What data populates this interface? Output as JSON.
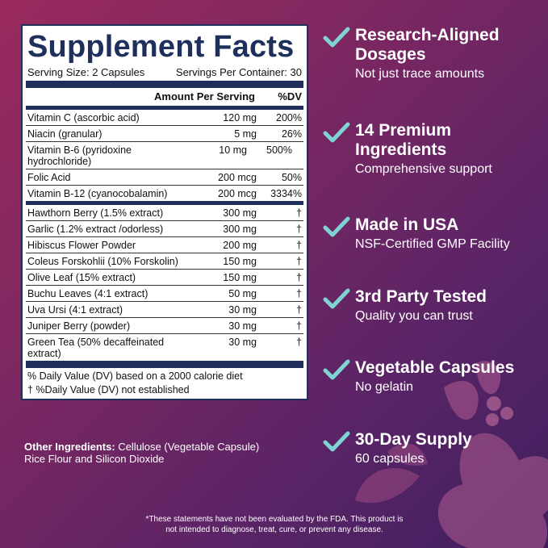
{
  "panel": {
    "title": "Supplement Facts",
    "serving_size": "Serving Size: 2 Capsules",
    "servings_per_container": "Servings Per Container: 30",
    "col_amount": "Amount Per Serving",
    "col_dv": "%DV",
    "rows_group1": [
      {
        "name": "Vitamin C (ascorbic acid)",
        "amount": "120 mg",
        "dv": "200%"
      },
      {
        "name": "Niacin (granular)",
        "amount": "5 mg",
        "dv": "26%"
      },
      {
        "name": "Vitamin B-6 (pyridoxine hydrochloride)",
        "amount": "10 mg",
        "dv": "500%"
      },
      {
        "name": "Folic Acid",
        "amount": "200 mcg",
        "dv": "50%"
      },
      {
        "name": "Vitamin B-12 (cyanocobalamin)",
        "amount": "200 mcg",
        "dv": "3334%"
      }
    ],
    "rows_group2": [
      {
        "name": "Hawthorn Berry (1.5% extract)",
        "amount": "300 mg",
        "dv": "†"
      },
      {
        "name": "Garlic (1.2% extract /odorless)",
        "amount": "300 mg",
        "dv": "†"
      },
      {
        "name": "Hibiscus Flower Powder",
        "amount": "200 mg",
        "dv": "†"
      },
      {
        "name": "Coleus Forskohlii (10% Forskolin)",
        "amount": "150 mg",
        "dv": "†"
      },
      {
        "name": "Olive Leaf (15% extract)",
        "amount": "150 mg",
        "dv": "†"
      },
      {
        "name": "Buchu Leaves (4:1 extract)",
        "amount": "50 mg",
        "dv": "†"
      },
      {
        "name": "Uva Ursi (4:1 extract)",
        "amount": "30 mg",
        "dv": "†"
      },
      {
        "name": "Juniper Berry (powder)",
        "amount": "30 mg",
        "dv": "†"
      },
      {
        "name": "Green Tea (50% decaffeinated extract)",
        "amount": "30 mg",
        "dv": "†"
      }
    ],
    "footnote1": "% Daily Value (DV) based on a 2000 calorie diet",
    "footnote2": "† %Daily Value (DV) not established"
  },
  "other_ingredients": {
    "label": "Other Ingredients:",
    "text1": " Cellulose (Vegetable Capsule)",
    "text2": "Rice Flour and Silicon Dioxide"
  },
  "features": [
    {
      "title1": "Research-Aligned",
      "title2": "Dosages",
      "sub": "Not just trace amounts"
    },
    {
      "title1": "14 Premium",
      "title2": "Ingredients",
      "sub": "Comprehensive support"
    },
    {
      "title1": "Made in USA",
      "title2": "",
      "sub": "NSF-Certified GMP Facility"
    },
    {
      "title1": "3rd Party Tested",
      "title2": "",
      "sub": "Quality you can trust"
    },
    {
      "title1": "Vegetable Capsules",
      "title2": "",
      "sub": "No gelatin"
    },
    {
      "title1": "30-Day Supply",
      "title2": "",
      "sub": "60 capsules"
    }
  ],
  "disclaimer1": "*These statements have not been evaluated by the FDA. This product is",
  "disclaimer2": "not intended to diagnose, treat, cure, or prevent any disease.",
  "colors": {
    "navy": "#1e2f5c",
    "check": "#7fd3d2"
  }
}
